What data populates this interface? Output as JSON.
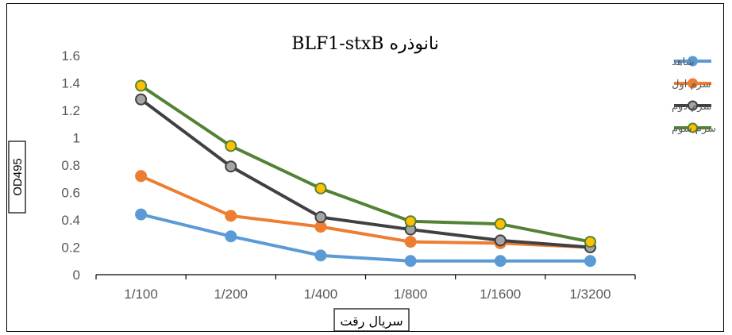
{
  "chart_data": {
    "type": "line",
    "title": "نانوذره BLF1-stxB",
    "xlabel": "سریال رقت",
    "ylabel": "OD495",
    "categories": [
      "1/100",
      "1/200",
      "1/400",
      "1/800",
      "1/1600",
      "1/3200"
    ],
    "ylim": [
      0,
      1.6
    ],
    "yticks": [
      "0",
      "0.2",
      "0.4",
      "0.6",
      "0.8",
      "1",
      "1.2",
      "1.4",
      "1.6"
    ],
    "grid": false,
    "legend_position": "right",
    "series": [
      {
        "name": "شاهد",
        "color": "#5B9BD5",
        "marker_fill": "#5B9BD5",
        "values": [
          0.44,
          0.28,
          0.14,
          0.1,
          0.1,
          0.1
        ]
      },
      {
        "name": "سرم اول",
        "color": "#ED7D31",
        "marker_fill": "#ED7D31",
        "values": [
          0.72,
          0.43,
          0.35,
          0.24,
          0.23,
          0.2
        ]
      },
      {
        "name": "سرم دوم",
        "color": "#404040",
        "marker_fill": "#A5A5A5",
        "values": [
          1.28,
          0.79,
          0.42,
          0.33,
          0.25,
          0.2
        ]
      },
      {
        "name": "سرم سوم",
        "color": "#548235",
        "marker_fill": "#FFC000",
        "values": [
          1.38,
          0.94,
          0.63,
          0.39,
          0.37,
          0.24
        ]
      }
    ]
  }
}
